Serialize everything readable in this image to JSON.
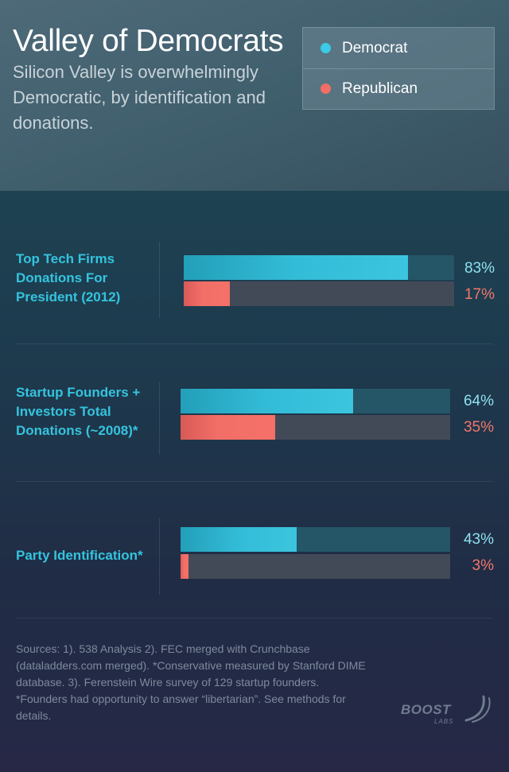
{
  "header": {
    "title": "Valley of Democrats",
    "subtitle": "Silicon Valley is overwhelmingly Democratic, by identification and donations."
  },
  "legend": {
    "items": [
      {
        "label": "Democrat",
        "color": "#3ccbe6"
      },
      {
        "label": "Republican",
        "color": "#f26e66"
      }
    ]
  },
  "chart_data": {
    "type": "bar",
    "orientation": "horizontal",
    "categories": [
      "Top Tech Firms Donations For President (2012)",
      "Startup Founders + Investors Total Donations (~2008)*",
      "Party Identification*"
    ],
    "series": [
      {
        "name": "Democrat",
        "values": [
          83,
          64,
          43
        ],
        "labels": [
          "83%",
          "64%",
          "43%"
        ],
        "color": "#35bfd9"
      },
      {
        "name": "Republican",
        "values": [
          17,
          35,
          3
        ],
        "labels": [
          "17%",
          "35%",
          "3%"
        ],
        "color": "#f26e66"
      }
    ],
    "xlim": [
      0,
      100
    ],
    "grid": false,
    "legend": "top-right"
  },
  "sources": "Sources: 1). 538 Analysis 2). FEC merged with Crunchbase (dataladders.com merged). *Conservative measured by Stanford DIME database. 3). Ferenstein Wire survey of 129 startup founders. *Founders had opportunity to answer “libertarian”. See methods for details.",
  "logo": {
    "name": "BOOST",
    "sub": "LABS",
    "icon": "swoosh-icon"
  }
}
